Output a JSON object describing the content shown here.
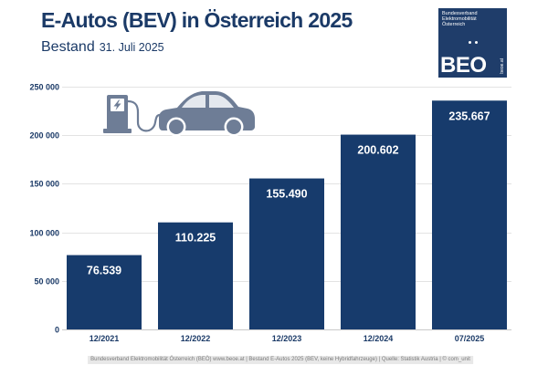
{
  "chart_data": {
    "type": "bar",
    "title": "E-Autos (BEV) in Österreich 2025",
    "subtitle": "Bestand",
    "subtitle_date": "31. Juli 2025",
    "categories": [
      "12/2021",
      "12/2022",
      "12/2023",
      "12/2024",
      "07/2025"
    ],
    "values": [
      76539,
      110225,
      155490,
      200602,
      235667
    ],
    "data_labels": [
      "76.539",
      "110.225",
      "155.490",
      "200.602",
      "235.667"
    ],
    "ylim": [
      0,
      250000
    ],
    "yticks": [
      0,
      50000,
      100000,
      150000,
      200000,
      250000
    ],
    "ytick_labels": [
      "0",
      "50 000",
      "100 000",
      "150 000",
      "200 000",
      "250 000"
    ],
    "grid": true,
    "bar_color": "#173b6c"
  },
  "logo": {
    "org_lines": [
      "Bundesverband",
      "Elektromobilität",
      "Österreich"
    ],
    "mark": "BEO",
    "url": "beoe.at",
    "background": "#1f3d6a"
  },
  "illustration": {
    "icons": [
      "ev-charger-icon",
      "car-icon"
    ],
    "color": "#6e7d96"
  },
  "footer": {
    "text": "Bundesverband Elektromobilität Österreich (BEÖ) www.beoe.at | Bestand E-Autos 2025 (BEV, keine Hybridfahrzeuge) | Quelle: Statistik Austria | © com_unit"
  },
  "theme": {
    "primary": "#1b3a67",
    "grid": "#e3e3e3",
    "axis": "#c9c9c9",
    "footer_bg": "#e8e8e8",
    "footer_text": "#7a7a7a"
  }
}
